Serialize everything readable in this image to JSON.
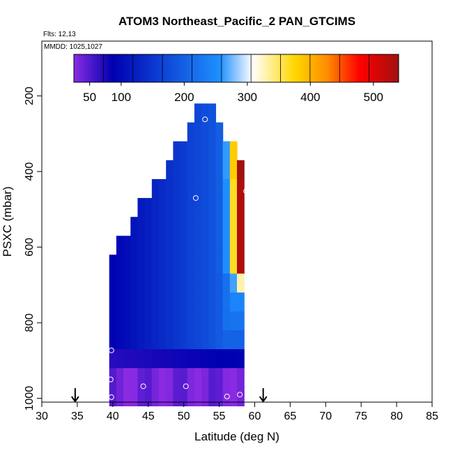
{
  "chart_data": {
    "type": "heatmap",
    "title": "ATOM3 Northeast_Pacific_2 PAN_GTCIMS",
    "flights_label": "Flts: 12,13",
    "dates_label": "MMDD: 1025,1027",
    "xlabel": "Latitude (deg N)",
    "ylabel": "PSXC (mbar)",
    "xlim": [
      30,
      85
    ],
    "ylim": [
      1010,
      55
    ],
    "y_inverted": true,
    "x_ticks": [
      30,
      35,
      40,
      45,
      50,
      55,
      60,
      65,
      70,
      75,
      80,
      85
    ],
    "y_ticks": [
      200,
      400,
      600,
      800,
      1000
    ],
    "colorbar": {
      "range": [
        25,
        540
      ],
      "ticks": [
        50,
        100,
        200,
        300,
        400,
        500
      ],
      "colors": [
        "#8a2be2",
        "#0000b0",
        "#1e90ff",
        "#ffffff",
        "#ffd700",
        "#ff8c00",
        "#ff0000",
        "#a01010"
      ],
      "color_stops": [
        0,
        0.12,
        0.45,
        0.55,
        0.68,
        0.78,
        0.88,
        1.0
      ]
    },
    "arrows": [
      34.7,
      61.2
    ],
    "grid": {
      "lat_start": 39.5,
      "lat_step": 1.0,
      "lat_count": 19,
      "p_start": 220,
      "p_step": 50,
      "p_count": 16
    },
    "samples": [
      {
        "lat": 53.0,
        "p": 262
      },
      {
        "lat": 51.7,
        "p": 470
      },
      {
        "lat": 58.8,
        "p": 452
      },
      {
        "lat": 39.8,
        "p": 873
      },
      {
        "lat": 39.7,
        "p": 950
      },
      {
        "lat": 44.3,
        "p": 968
      },
      {
        "lat": 50.3,
        "p": 968
      },
      {
        "lat": 39.8,
        "p": 997
      },
      {
        "lat": 56.1,
        "p": 995
      },
      {
        "lat": 57.9,
        "p": 990
      }
    ]
  }
}
